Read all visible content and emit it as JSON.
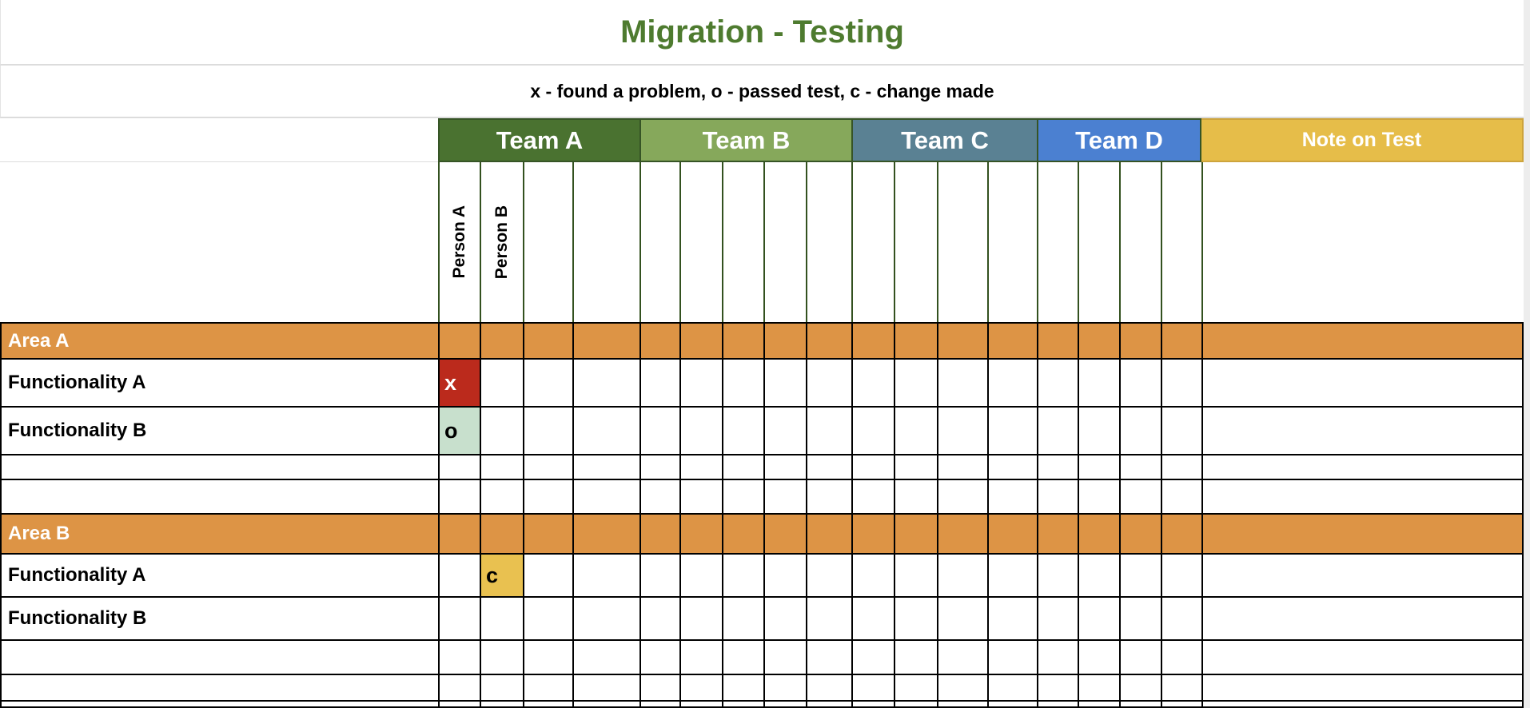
{
  "title": "Migration - Testing",
  "legend": "x - found a problem, o - passed test, c - change made",
  "teams": [
    {
      "label": "Team A",
      "color": "#4a7230",
      "cols": 4
    },
    {
      "label": "Team B",
      "color": "#86a85b",
      "cols": 5
    },
    {
      "label": "Team C",
      "color": "#5a8193",
      "cols": 4
    },
    {
      "label": "Team D",
      "color": "#4b80d1",
      "cols": 4
    }
  ],
  "note_header": {
    "label": "Note on Test",
    "color": "#e6bd49"
  },
  "person_headers": [
    {
      "col": 0,
      "label": "Person A"
    },
    {
      "col": 1,
      "label": "Person B"
    }
  ],
  "colors": {
    "title": "#4e7b2f",
    "area_row": "#dd9445",
    "mark_x_bg": "#bb2a1c",
    "mark_o_bg": "#c8e0cd",
    "mark_c_bg": "#e9c150"
  },
  "sections": [
    {
      "label": "Area A",
      "rows": [
        {
          "label": "Functionality A",
          "marks": [
            {
              "col": 0,
              "symbol": "x",
              "bg": "#bb2a1c",
              "fg": "#ffffff"
            }
          ],
          "note": ""
        },
        {
          "label": "Functionality B",
          "marks": [
            {
              "col": 0,
              "symbol": "o",
              "bg": "#c8e0cd",
              "fg": "#000000"
            }
          ],
          "note": ""
        },
        {
          "label": "",
          "marks": [],
          "note": ""
        },
        {
          "label": "",
          "marks": [],
          "note": ""
        }
      ]
    },
    {
      "label": "Area B",
      "rows": [
        {
          "label": "Functionality A",
          "marks": [
            {
              "col": 1,
              "symbol": "c",
              "bg": "#e9c150",
              "fg": "#000000"
            }
          ],
          "note": ""
        },
        {
          "label": "Functionality B",
          "marks": [],
          "note": ""
        },
        {
          "label": "",
          "marks": [],
          "note": ""
        },
        {
          "label": "",
          "marks": [],
          "note": ""
        },
        {
          "label": "",
          "marks": [],
          "note": ""
        }
      ]
    }
  ]
}
